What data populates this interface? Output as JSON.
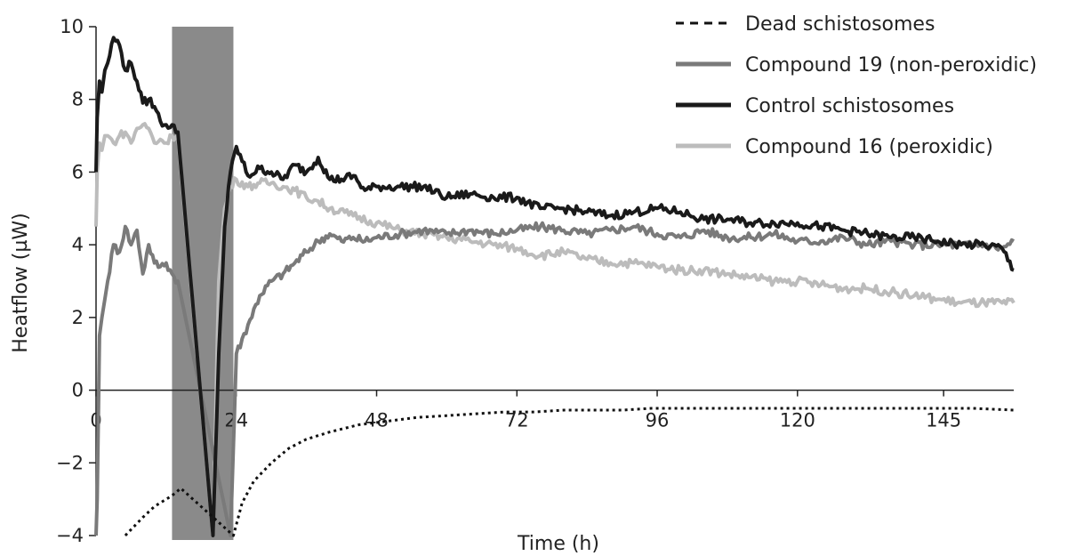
{
  "chart_data": {
    "type": "line",
    "xlabel": "Time (h)",
    "ylabel": "Heatflow (µW)",
    "xlim": [
      0,
      157
    ],
    "ylim": [
      -4,
      10
    ],
    "xticks": [
      0,
      24,
      48,
      72,
      96,
      120,
      145
    ],
    "xtick_labels": [
      "0",
      "24",
      "48",
      "72",
      "96",
      "120",
      "145"
    ],
    "yticks": [
      -4,
      -2,
      0,
      2,
      4,
      6,
      8,
      10
    ],
    "ytick_labels": [
      "−4",
      "−2",
      "0",
      "2",
      "4",
      "6",
      "8",
      "10"
    ],
    "shaded_region": {
      "x": [
        13,
        23.5
      ],
      "color": "#8a8a8a"
    },
    "zero_line": true,
    "grid": false,
    "legend": {
      "placement": "top-right"
    },
    "series": [
      {
        "name": "Dead schistosomes",
        "style": "dashed",
        "color": "#111111",
        "x": [
          5,
          8,
          10,
          13,
          14.5,
          23.5,
          25,
          27,
          30,
          33,
          36,
          40,
          45,
          50,
          55,
          60,
          65,
          70,
          75,
          80,
          85,
          90,
          95,
          100,
          110,
          120,
          130,
          140,
          150,
          157
        ],
        "y": [
          -4,
          -3.5,
          -3.2,
          -2.9,
          -2.7,
          -4,
          -3.1,
          -2.5,
          -2.0,
          -1.6,
          -1.35,
          -1.15,
          -0.95,
          -0.85,
          -0.75,
          -0.7,
          -0.65,
          -0.6,
          -0.6,
          -0.55,
          -0.55,
          -0.55,
          -0.5,
          -0.5,
          -0.5,
          -0.5,
          -0.5,
          -0.5,
          -0.5,
          -0.55
        ]
      },
      {
        "name": "Compound 19 (non-peroxidic)",
        "style": "solid",
        "color": "#7a7a7a",
        "x": [
          0,
          0.2,
          0.6,
          1,
          1.5,
          2,
          3,
          4,
          5,
          6,
          7,
          8,
          9,
          10,
          11,
          12,
          13,
          14,
          23,
          24,
          26,
          28,
          30,
          32,
          34,
          36,
          38,
          40,
          42,
          44,
          46,
          48,
          52,
          56,
          60,
          64,
          68,
          72,
          76,
          80,
          84,
          88,
          92,
          96,
          100,
          104,
          108,
          112,
          116,
          120,
          124,
          128,
          132,
          136,
          140,
          144,
          148,
          152,
          155,
          157
        ],
        "y": [
          -4,
          -3.0,
          1.5,
          2.0,
          2.5,
          3.0,
          4.0,
          3.8,
          4.5,
          4.0,
          4.4,
          3.2,
          4.0,
          3.5,
          3.4,
          3.5,
          3.2,
          3.0,
          -4,
          1.0,
          1.8,
          2.6,
          3.0,
          3.2,
          3.5,
          3.8,
          4.1,
          4.3,
          4.1,
          4.2,
          4.1,
          4.2,
          4.3,
          4.4,
          4.3,
          4.4,
          4.3,
          4.4,
          4.5,
          4.4,
          4.3,
          4.4,
          4.5,
          4.3,
          4.2,
          4.4,
          4.2,
          4.2,
          4.3,
          4.1,
          4.1,
          4.2,
          4.0,
          4.1,
          4.0,
          4.0,
          4.0,
          4.0,
          3.9,
          4.1
        ]
      },
      {
        "name": "Control schistosomes",
        "style": "solid",
        "color": "#1a1a1a",
        "x": [
          0,
          0.2,
          0.6,
          1,
          1.5,
          2,
          3,
          4,
          5,
          6,
          7,
          8,
          9,
          10,
          11,
          12,
          13,
          14,
          20,
          21,
          22,
          23,
          24,
          26,
          28,
          30,
          32,
          34,
          36,
          38,
          40,
          42,
          44,
          46,
          48,
          52,
          56,
          60,
          64,
          68,
          72,
          76,
          80,
          84,
          88,
          92,
          96,
          100,
          104,
          108,
          112,
          116,
          120,
          124,
          128,
          132,
          136,
          140,
          144,
          148,
          152,
          155,
          157
        ],
        "y": [
          6.0,
          7.5,
          8.5,
          8.2,
          8.8,
          9.0,
          9.7,
          9.5,
          8.8,
          9.0,
          8.5,
          7.9,
          8.0,
          7.8,
          7.4,
          7.3,
          7.3,
          7.1,
          -4,
          1.0,
          4.5,
          6.0,
          6.7,
          5.9,
          6.1,
          6.0,
          5.8,
          6.2,
          6.0,
          6.4,
          5.8,
          5.8,
          5.9,
          5.5,
          5.6,
          5.6,
          5.6,
          5.3,
          5.4,
          5.3,
          5.3,
          5.0,
          5.0,
          4.9,
          4.8,
          4.9,
          5.0,
          4.9,
          4.7,
          4.7,
          4.6,
          4.6,
          4.6,
          4.5,
          4.4,
          4.3,
          4.2,
          4.2,
          4.1,
          4.0,
          4.0,
          3.9,
          3.3
        ]
      },
      {
        "name": "Compound 16 (peroxidic)",
        "style": "solid",
        "color": "#bcbcbc",
        "x": [
          0,
          0.2,
          0.6,
          1,
          1.5,
          2,
          3,
          4,
          5,
          6,
          7,
          8,
          9,
          10,
          11,
          12,
          13,
          14,
          20,
          21,
          22,
          23,
          24,
          26,
          28,
          30,
          32,
          34,
          36,
          38,
          40,
          44,
          48,
          52,
          56,
          60,
          64,
          68,
          72,
          76,
          80,
          84,
          88,
          92,
          96,
          100,
          104,
          108,
          112,
          116,
          120,
          124,
          128,
          132,
          136,
          140,
          144,
          148,
          152,
          155,
          157
        ],
        "y": [
          4.5,
          6.0,
          6.8,
          6.6,
          7.0,
          7.0,
          6.8,
          7.0,
          7.1,
          6.8,
          7.2,
          7.3,
          7.2,
          6.8,
          6.9,
          6.8,
          7.0,
          7.0,
          -4,
          3.0,
          5.0,
          5.6,
          5.8,
          5.6,
          5.7,
          5.7,
          5.6,
          5.5,
          5.3,
          5.2,
          5.0,
          4.8,
          4.6,
          4.4,
          4.3,
          4.2,
          4.1,
          4.0,
          3.9,
          3.7,
          3.8,
          3.6,
          3.5,
          3.5,
          3.4,
          3.3,
          3.3,
          3.2,
          3.1,
          3.0,
          3.0,
          2.9,
          2.8,
          2.8,
          2.7,
          2.6,
          2.5,
          2.4,
          2.4,
          2.4,
          2.4
        ]
      }
    ]
  }
}
